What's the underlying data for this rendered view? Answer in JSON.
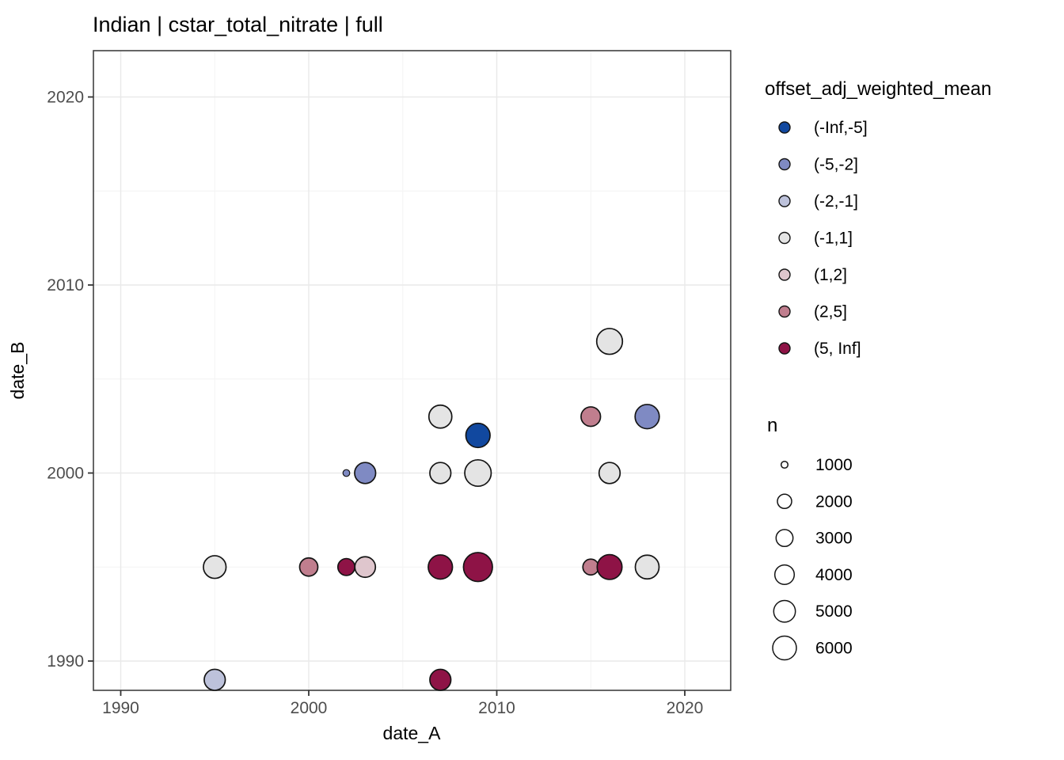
{
  "title": "Indian | cstar_total_nitrate | full",
  "axes": {
    "x": {
      "label": "date_A",
      "ticks": [
        1990,
        2000,
        2010,
        2020
      ],
      "minor_ticks": [
        1995,
        2005,
        2015
      ],
      "range": [
        1988.55,
        2022.45
      ]
    },
    "y": {
      "label": "date_B",
      "ticks": [
        1990,
        2000,
        2010,
        2020
      ],
      "minor_ticks": [
        1995,
        2005,
        2015
      ],
      "range": [
        1988.45,
        2022.45
      ]
    }
  },
  "legends": {
    "color": {
      "title": "offset_adj_weighted_mean",
      "entries": [
        {
          "label": "(-Inf,-5]",
          "color": "#11489F"
        },
        {
          "label": "(-5,-2]",
          "color": "#7F8AC3"
        },
        {
          "label": "(-2,-1]",
          "color": "#BDC2DB"
        },
        {
          "label": "(-1,1]",
          "color": "#E4E4E4"
        },
        {
          "label": "(1,2]",
          "color": "#DFC6CD"
        },
        {
          "label": "(2,5]",
          "color": "#C07E8E"
        },
        {
          "label": "(5, Inf]",
          "color": "#8E1346"
        }
      ]
    },
    "size": {
      "title": "n",
      "entries": [
        {
          "label": "1000",
          "n": 1000,
          "r": 4.3
        },
        {
          "label": "2000",
          "n": 2000,
          "r": 9.0
        },
        {
          "label": "3000",
          "n": 3000,
          "r": 10.7
        },
        {
          "label": "4000",
          "n": 4000,
          "r": 12.3
        },
        {
          "label": "5000",
          "n": 5000,
          "r": 13.7
        },
        {
          "label": "6000",
          "n": 6000,
          "r": 15.0
        }
      ]
    }
  },
  "style": {
    "panel_border": "#404040",
    "grid_major": "#E9E9E9",
    "grid_minor": "#F4F4F4",
    "tick_mark": "#333333",
    "tick_text": "#4D4D4D",
    "point_stroke": "#141414",
    "background": "#FFFFFF"
  },
  "chart_data": {
    "type": "scatter",
    "title": "Indian | cstar_total_nitrate | full",
    "xlabel": "date_A",
    "ylabel": "date_B",
    "xlim": [
      1988.55,
      2022.45
    ],
    "ylim": [
      1988.45,
      2022.45
    ],
    "x_ticks": [
      1990,
      2000,
      2010,
      2020
    ],
    "y_ticks": [
      1990,
      2000,
      2010,
      2020
    ],
    "grid": true,
    "legend_position": "right",
    "color_variable": "offset_adj_weighted_mean",
    "size_variable": "n",
    "points": [
      {
        "x": 1995,
        "y": 1995,
        "bin": "(-1,1]",
        "n": 5200,
        "r": 14.3
      },
      {
        "x": 1995,
        "y": 1989,
        "bin": "(-2,-1]",
        "n": 4600,
        "r": 13.3
      },
      {
        "x": 2000,
        "y": 1995,
        "bin": "(2,5]",
        "n": 3400,
        "r": 11.5
      },
      {
        "x": 2002,
        "y": 1995,
        "bin": "(5, Inf]",
        "n": 3000,
        "r": 10.7
      },
      {
        "x": 2003,
        "y": 1995,
        "bin": "(1,2]",
        "n": 4400,
        "r": 13.0
      },
      {
        "x": 2002,
        "y": 2000,
        "bin": "(-5,-2]",
        "n": 900,
        "r": 4.3
      },
      {
        "x": 2003,
        "y": 2000,
        "bin": "(-5,-2]",
        "n": 4600,
        "r": 13.3
      },
      {
        "x": 2007,
        "y": 2003,
        "bin": "(-1,1]",
        "n": 5300,
        "r": 14.5
      },
      {
        "x": 2007,
        "y": 2000,
        "bin": "(-1,1]",
        "n": 4600,
        "r": 13.3
      },
      {
        "x": 2007,
        "y": 1995,
        "bin": "(5, Inf]",
        "n": 6200,
        "r": 15.3
      },
      {
        "x": 2007,
        "y": 1989,
        "bin": "(5, Inf]",
        "n": 4600,
        "r": 13.3
      },
      {
        "x": 2009,
        "y": 2002,
        "bin": "(-Inf,-5]",
        "n": 6200,
        "r": 15.3
      },
      {
        "x": 2009,
        "y": 2000,
        "bin": "(-1,1]",
        "n": 7400,
        "r": 16.7
      },
      {
        "x": 2009,
        "y": 1995,
        "bin": "(5, Inf]",
        "n": 9000,
        "r": 18.3
      },
      {
        "x": 2015,
        "y": 2003,
        "bin": "(2,5]",
        "n": 4000,
        "r": 12.3
      },
      {
        "x": 2015,
        "y": 1995,
        "bin": "(2,5]",
        "n": 2600,
        "r": 10.0
      },
      {
        "x": 2016,
        "y": 2007,
        "bin": "(-1,1]",
        "n": 7000,
        "r": 16.3
      },
      {
        "x": 2016,
        "y": 2000,
        "bin": "(-1,1]",
        "n": 4600,
        "r": 13.3
      },
      {
        "x": 2016,
        "y": 1995,
        "bin": "(5, Inf]",
        "n": 6500,
        "r": 15.7
      },
      {
        "x": 2018,
        "y": 2003,
        "bin": "(-5,-2]",
        "n": 6200,
        "r": 15.3
      },
      {
        "x": 2018,
        "y": 1995,
        "bin": "(-1,1]",
        "n": 6000,
        "r": 15.0
      }
    ]
  }
}
